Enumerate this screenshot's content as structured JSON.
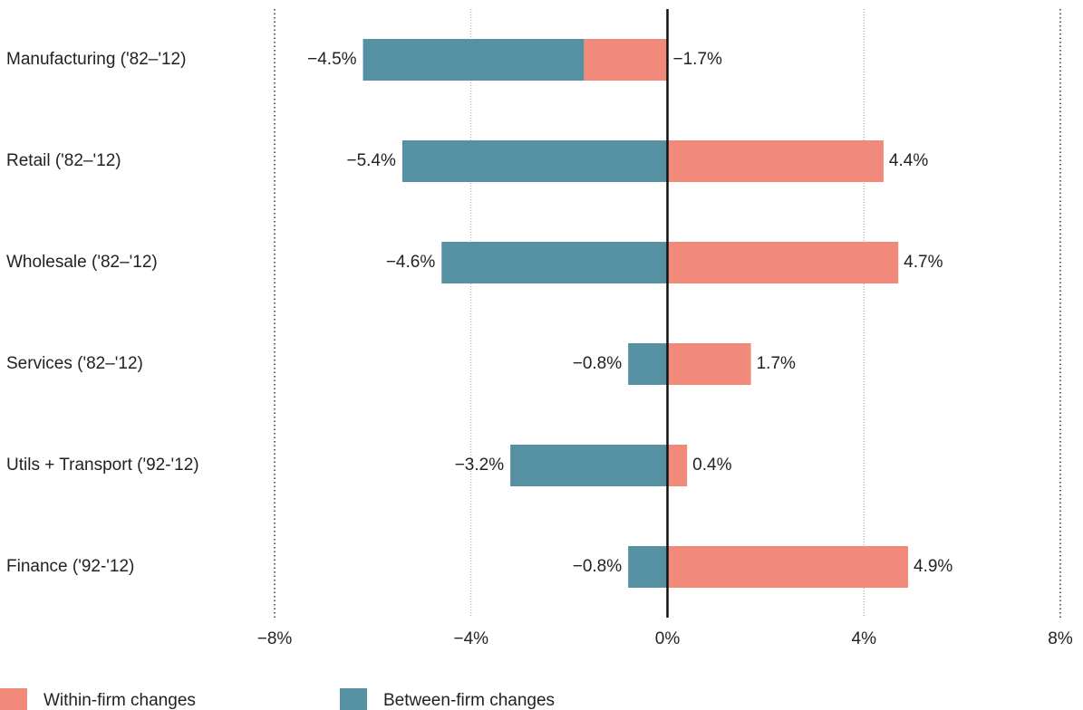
{
  "chart_data": {
    "type": "bar",
    "orientation": "horizontal",
    "stacked": true,
    "categories": [
      "Manufacturing ('82–'12)",
      "Retail ('82–'12)",
      "Wholesale ('82–'12)",
      "Services ('82–'12)",
      "Utils + Transport ('92-'12)",
      "Finance ('92-'12)"
    ],
    "series": [
      {
        "name": "Within-firm changes",
        "color": "#f28a7c",
        "values": [
          -1.7,
          4.4,
          4.7,
          1.7,
          0.4,
          4.9
        ],
        "value_labels": [
          "−1.7%",
          "4.4%",
          "4.7%",
          "1.7%",
          "0.4%",
          "4.9%"
        ]
      },
      {
        "name": "Between-firm changes",
        "color": "#5590a3",
        "values": [
          -4.5,
          -5.4,
          -4.6,
          -0.8,
          -3.2,
          -0.8
        ],
        "value_labels": [
          "−4.5%",
          "−5.4%",
          "−4.6%",
          "−0.8%",
          "−3.2%",
          "−0.8%"
        ]
      }
    ],
    "xlim": [
      -8,
      8
    ],
    "xticks": [
      {
        "value": -8,
        "label": "−8%"
      },
      {
        "value": -4,
        "label": "−4%"
      },
      {
        "value": 0,
        "label": "0%"
      },
      {
        "value": 4,
        "label": "4%"
      },
      {
        "value": 8,
        "label": "8%"
      }
    ],
    "grid": true,
    "legend": "bottom"
  }
}
